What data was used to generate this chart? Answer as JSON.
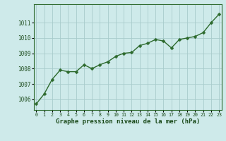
{
  "x": [
    0,
    1,
    2,
    3,
    4,
    5,
    6,
    7,
    8,
    9,
    10,
    11,
    12,
    13,
    14,
    15,
    16,
    17,
    18,
    19,
    20,
    21,
    22,
    23
  ],
  "y": [
    1005.7,
    1006.35,
    1007.3,
    1007.9,
    1007.8,
    1007.8,
    1008.25,
    1008.0,
    1008.25,
    1008.45,
    1008.8,
    1009.0,
    1009.05,
    1009.5,
    1009.65,
    1009.9,
    1009.8,
    1009.35,
    1009.9,
    1010.0,
    1010.1,
    1010.35,
    1011.0,
    1011.55
  ],
  "line_color": "#2d6a2d",
  "marker_color": "#2d6a2d",
  "background_color": "#ceeaea",
  "grid_color": "#a8cccc",
  "xlabel": "Graphe pression niveau de la mer (hPa)",
  "xlabel_color": "#1a4a1a",
  "tick_color": "#1a4a1a",
  "ylim": [
    1005.3,
    1012.2
  ],
  "yticks": [
    1006,
    1007,
    1008,
    1009,
    1010,
    1011
  ],
  "xticks": [
    0,
    1,
    2,
    3,
    4,
    5,
    6,
    7,
    8,
    9,
    10,
    11,
    12,
    13,
    14,
    15,
    16,
    17,
    18,
    19,
    20,
    21,
    22,
    23
  ],
  "xtick_labels": [
    "0",
    "1",
    "2",
    "3",
    "4",
    "5",
    "6",
    "7",
    "8",
    "9",
    "10",
    "11",
    "12",
    "13",
    "14",
    "15",
    "16",
    "17",
    "18",
    "19",
    "20",
    "21",
    "22",
    "23"
  ],
  "marker_size": 2.5,
  "linewidth": 1.0,
  "fig_bg": "#ceeaea",
  "border_color": "#2d6a2d"
}
